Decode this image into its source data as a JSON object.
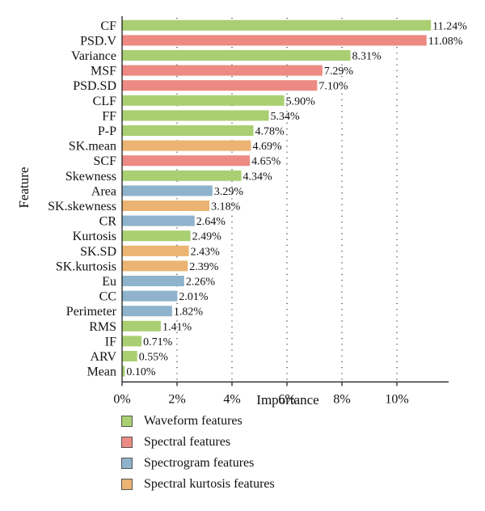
{
  "chart_data": {
    "type": "bar",
    "orientation": "horizontal",
    "xlabel": "Importance",
    "ylabel": "Feature",
    "xlim": [
      0,
      12
    ],
    "xticks": [
      0,
      2,
      4,
      6,
      8,
      10
    ],
    "xtick_labels": [
      "0%",
      "2%",
      "4%",
      "6%",
      "8%",
      "10%"
    ],
    "grid": "vertical dotted",
    "legend_position": "bottom",
    "categories_legend": [
      {
        "key": "waveform",
        "label": "Waveform features",
        "color": "#a9cf72"
      },
      {
        "key": "spectral",
        "label": "Spectral features",
        "color": "#ec8a83"
      },
      {
        "key": "spectrogram",
        "label": "Spectrogram features",
        "color": "#8fb3cc"
      },
      {
        "key": "kurtosis",
        "label": "Spectral kurtosis features",
        "color": "#ebb472"
      }
    ],
    "bars": [
      {
        "feature": "CF",
        "value": 11.24,
        "label": "11.24%",
        "group": "waveform"
      },
      {
        "feature": "PSD.V",
        "value": 11.08,
        "label": "11.08%",
        "group": "spectral"
      },
      {
        "feature": "Variance",
        "value": 8.31,
        "label": "8.31%",
        "group": "waveform"
      },
      {
        "feature": "MSF",
        "value": 7.29,
        "label": "7.29%",
        "group": "spectral"
      },
      {
        "feature": "PSD.SD",
        "value": 7.1,
        "label": "7.10%",
        "group": "spectral"
      },
      {
        "feature": "CLF",
        "value": 5.9,
        "label": "5.90%",
        "group": "waveform"
      },
      {
        "feature": "FF",
        "value": 5.34,
        "label": "5.34%",
        "group": "waveform"
      },
      {
        "feature": "P-P",
        "value": 4.78,
        "label": "4.78%",
        "group": "waveform"
      },
      {
        "feature": "SK.mean",
        "value": 4.69,
        "label": "4.69%",
        "group": "kurtosis"
      },
      {
        "feature": "SCF",
        "value": 4.65,
        "label": "4.65%",
        "group": "spectral"
      },
      {
        "feature": "Skewness",
        "value": 4.34,
        "label": "4.34%",
        "group": "waveform"
      },
      {
        "feature": "Area",
        "value": 3.29,
        "label": "3.29%",
        "group": "spectrogram"
      },
      {
        "feature": "SK.skewness",
        "value": 3.18,
        "label": "3.18%",
        "group": "kurtosis"
      },
      {
        "feature": "CR",
        "value": 2.64,
        "label": "2.64%",
        "group": "spectrogram"
      },
      {
        "feature": "Kurtosis",
        "value": 2.49,
        "label": "2.49%",
        "group": "waveform"
      },
      {
        "feature": "SK.SD",
        "value": 2.43,
        "label": "2.43%",
        "group": "kurtosis"
      },
      {
        "feature": "SK.kurtosis",
        "value": 2.39,
        "label": "2.39%",
        "group": "kurtosis"
      },
      {
        "feature": "Eu",
        "value": 2.26,
        "label": "2.26%",
        "group": "spectrogram"
      },
      {
        "feature": "CC",
        "value": 2.01,
        "label": "2.01%",
        "group": "spectrogram"
      },
      {
        "feature": "Perimeter",
        "value": 1.82,
        "label": "1.82%",
        "group": "spectrogram"
      },
      {
        "feature": "RMS",
        "value": 1.41,
        "label": "1.41%",
        "group": "waveform"
      },
      {
        "feature": "IF",
        "value": 0.71,
        "label": "0.71%",
        "group": "waveform"
      },
      {
        "feature": "ARV",
        "value": 0.55,
        "label": "0.55%",
        "group": "waveform"
      },
      {
        "feature": "Mean",
        "value": 0.1,
        "label": "0.10%",
        "group": "waveform"
      }
    ]
  }
}
